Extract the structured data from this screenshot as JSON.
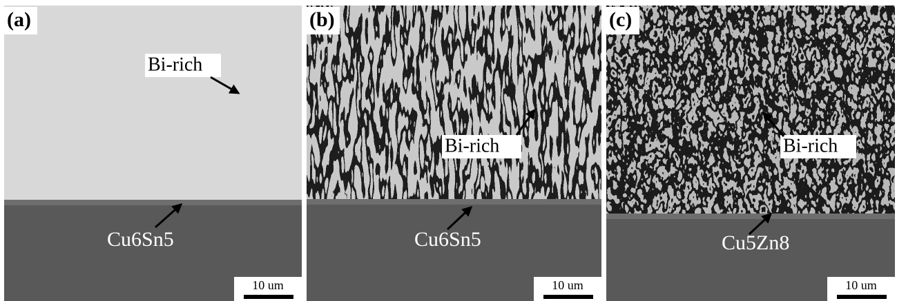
{
  "panels": [
    {
      "label": "(a)",
      "phase_label": "Bi-rich",
      "layer_label": "Cu6Sn5",
      "scale_label": "10 um"
    },
    {
      "label": "(b)",
      "phase_label": "Bi-rich",
      "layer_label": "Cu6Sn5",
      "scale_label": "10 um"
    },
    {
      "label": "(c)",
      "phase_label": "Bi-rich",
      "layer_label": "Cu5Zn8",
      "scale_label": "10 um"
    }
  ]
}
